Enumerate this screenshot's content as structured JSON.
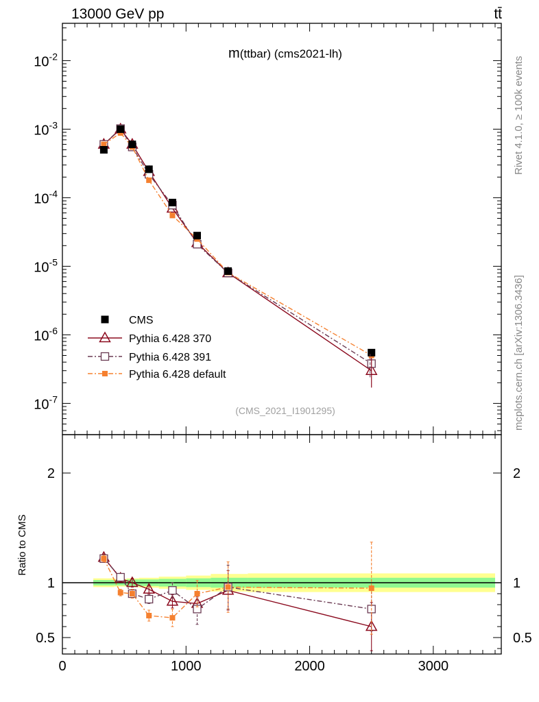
{
  "header": {
    "energy_label": "13000 GeV pp",
    "process_label": "tt̄"
  },
  "side_labels": {
    "rivet": "Rivet 4.1.0, ≥ 100k events",
    "source": "mcplots.cern.ch [arXiv:1306.3436]"
  },
  "colors": {
    "cms": "#000000",
    "py370": "#8b0a1e",
    "py391": "#6a3a52",
    "pydefault": "#f5802f",
    "band_inner": "#90f890",
    "band_outer": "#ffff90"
  },
  "chart_data": [
    {
      "id": "main",
      "type": "scatter",
      "title": "m(ttbar) (cms2021-lh)",
      "title_prefix": "m",
      "title_rest": "(ttbar) (cms2021-lh)",
      "watermark": "(CMS_2021_I1901295)",
      "xlabel": "",
      "ylabel": "",
      "yscale": "log",
      "xlim": [
        0,
        3550
      ],
      "ylim": [
        3.5e-08,
        0.035
      ],
      "ytick_labels": [
        {
          "mant": "10",
          "exp": "-2",
          "value": 0.01
        },
        {
          "mant": "10",
          "exp": "-3",
          "value": 0.001
        },
        {
          "mant": "10",
          "exp": "-4",
          "value": 0.0001
        },
        {
          "mant": "10",
          "exp": "-5",
          "value": 1e-05
        },
        {
          "mant": "10",
          "exp": "-6",
          "value": 1e-06
        },
        {
          "mant": "10",
          "exp": "-7",
          "value": 1e-07
        }
      ],
      "x": [
        335,
        470,
        565,
        700,
        890,
        1090,
        1340,
        2500
      ],
      "series": [
        {
          "name": "CMS",
          "key": "cms",
          "marker": "square-filled",
          "linestyle": "none",
          "values": [
            0.0005,
            0.001,
            0.0006,
            0.00026,
            8.5e-05,
            2.8e-05,
            8.5e-06,
            5.5e-07
          ]
        },
        {
          "name": "Pythia 6.428 370",
          "key": "py370",
          "marker": "triangle-open",
          "linestyle": "solid",
          "values": [
            0.0006,
            0.001,
            0.0006,
            0.00024,
            7e-05,
            2.2e-05,
            8e-06,
            3e-07
          ]
        },
        {
          "name": "Pythia 6.428 391",
          "key": "py391",
          "marker": "square-open",
          "linestyle": "dashdot",
          "values": [
            0.0006,
            0.00102,
            0.00055,
            0.00022,
            7.8e-05,
            2.1e-05,
            8e-06,
            3.8e-07
          ]
        },
        {
          "name": "Pythia 6.428 default",
          "key": "pydefault",
          "marker": "square-small",
          "linestyle": "dashdot",
          "values": [
            0.0006,
            0.00088,
            0.00055,
            0.00018,
            5.5e-05,
            2.5e-05,
            8.1e-06,
            5e-07
          ]
        }
      ]
    },
    {
      "id": "ratio",
      "type": "scatter",
      "title": "",
      "xlabel": "",
      "ylabel": "Ratio to CMS",
      "xlim": [
        0,
        3550
      ],
      "ylim": [
        0.35,
        2.35
      ],
      "yticks": [
        {
          "label": "0.5",
          "value": 0.5
        },
        {
          "label": "1",
          "value": 1
        },
        {
          "label": "2",
          "value": 2
        }
      ],
      "xticks": [
        {
          "label": "0",
          "value": 0
        },
        {
          "label": "1000",
          "value": 1000
        },
        {
          "label": "2000",
          "value": 2000
        },
        {
          "label": "3000",
          "value": 3000
        }
      ],
      "bands": [
        {
          "x0": 250,
          "x1": 420,
          "inner": [
            0.975,
            1.025
          ],
          "outer": [
            0.96,
            1.04
          ]
        },
        {
          "x0": 420,
          "x1": 520,
          "inner": [
            0.975,
            1.025
          ],
          "outer": [
            0.965,
            1.035
          ]
        },
        {
          "x0": 520,
          "x1": 620,
          "inner": [
            0.97,
            1.03
          ],
          "outer": [
            0.96,
            1.04
          ]
        },
        {
          "x0": 620,
          "x1": 780,
          "inner": [
            0.97,
            1.03
          ],
          "outer": [
            0.955,
            1.045
          ]
        },
        {
          "x0": 780,
          "x1": 1000,
          "inner": [
            0.965,
            1.035
          ],
          "outer": [
            0.945,
            1.055
          ]
        },
        {
          "x0": 1000,
          "x1": 1200,
          "inner": [
            0.96,
            1.04
          ],
          "outer": [
            0.935,
            1.065
          ]
        },
        {
          "x0": 1200,
          "x1": 1500,
          "inner": [
            0.955,
            1.045
          ],
          "outer": [
            0.92,
            1.08
          ]
        },
        {
          "x0": 1500,
          "x1": 3500,
          "inner": [
            0.955,
            1.045
          ],
          "outer": [
            0.915,
            1.085
          ]
        }
      ],
      "x": [
        335,
        470,
        565,
        700,
        890,
        1090,
        1340,
        2500
      ],
      "series": [
        {
          "name": "Pythia 6.428 370",
          "key": "py370",
          "marker": "triangle-open",
          "linestyle": "solid",
          "values": [
            1.23,
            1.04,
            1.0,
            0.94,
            0.83,
            0.81,
            0.93,
            0.6
          ],
          "err": [
            0.03,
            0.03,
            0.04,
            0.04,
            0.06,
            0.06,
            0.18,
            0.22
          ]
        },
        {
          "name": "Pythia 6.428 391",
          "key": "py391",
          "marker": "square-open",
          "linestyle": "dashdot",
          "values": [
            1.22,
            1.05,
            0.9,
            0.85,
            0.93,
            0.76,
            0.96,
            0.76
          ],
          "err": [
            0.03,
            0.03,
            0.04,
            0.04,
            0.07,
            0.14,
            0.2,
            0.2
          ]
        },
        {
          "name": "Pythia 6.428 default",
          "key": "pydefault",
          "marker": "square-small",
          "linestyle": "dashdot",
          "values": [
            1.22,
            0.91,
            0.9,
            0.7,
            0.68,
            0.9,
            0.96,
            0.95
          ],
          "err": [
            0.03,
            0.03,
            0.04,
            0.05,
            0.08,
            0.12,
            0.23,
            0.42
          ]
        }
      ]
    }
  ]
}
